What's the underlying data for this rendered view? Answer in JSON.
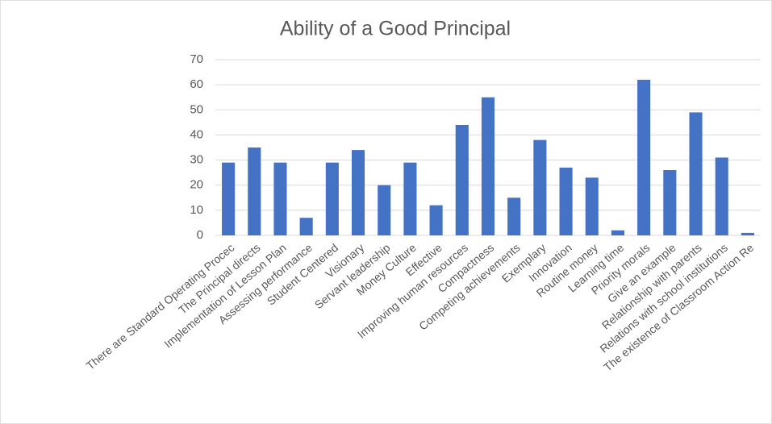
{
  "chart_data": {
    "type": "bar",
    "title": "Ability of a Good Principal",
    "categories": [
      "There are Standard Operating Procec",
      "The Principal directs",
      "Implementation of Lesson Plan",
      "Assessing performance",
      "Student Centered",
      "Visionary",
      "Servant leadership",
      "Money Culture",
      "Effective",
      "Improving human resources",
      "Compactness",
      "Competing achievements",
      "Exemplary",
      "Innovation",
      "Routine money",
      "Learning time",
      "Priority morals",
      "Give an example",
      "Relationship with parents",
      "Relations with school institutions",
      "The existence of Classroom Action Re"
    ],
    "values": [
      29,
      35,
      29,
      7,
      29,
      34,
      20,
      29,
      12,
      44,
      55,
      15,
      38,
      27,
      23,
      2,
      62,
      26,
      49,
      31,
      1
    ],
    "color": "#4472c4",
    "ylim": [
      0,
      70
    ],
    "yticks": [
      0,
      10,
      20,
      30,
      40,
      50,
      60,
      70
    ],
    "grid": true
  }
}
